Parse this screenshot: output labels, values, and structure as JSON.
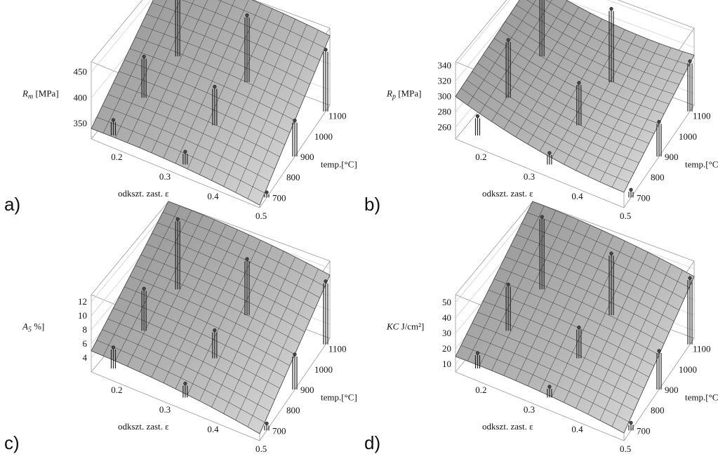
{
  "chart_data": [
    {
      "type": "surface3d",
      "panel": "a)",
      "zlabel_sym": "R",
      "zlabel_sub": "m",
      "zlabel_unit": " [MPa]",
      "xlabel": "odkszt. zast. ε",
      "ylabel": "temp.[°C]",
      "xlim": [
        0.15,
        0.5
      ],
      "ylim": [
        650,
        1150
      ],
      "zlim": [
        320,
        470
      ],
      "xticks": [
        "0.2",
        "0.3",
        "0.4",
        "0.5"
      ],
      "yticks": [
        "700",
        "800",
        "900",
        "1000",
        "1100"
      ],
      "zticks": [
        "350",
        "400",
        "450"
      ],
      "zticks_values": [
        350,
        400,
        450
      ],
      "surface_corners": {
        "x_low_t_low": 340,
        "x_high_t_low": 325,
        "x_low_t_high": 470,
        "x_high_t_high": 455
      },
      "points": [
        {
          "x": 0.18,
          "t": 1120,
          "z": 470
        },
        {
          "x": 0.33,
          "t": 1120,
          "z": 450
        },
        {
          "x": 0.5,
          "t": 1120,
          "z": 440
        },
        {
          "x": 0.18,
          "t": 900,
          "z": 400
        },
        {
          "x": 0.33,
          "t": 900,
          "z": 395
        },
        {
          "x": 0.5,
          "t": 900,
          "z": 390
        },
        {
          "x": 0.18,
          "t": 700,
          "z": 350
        },
        {
          "x": 0.33,
          "t": 700,
          "z": 345
        },
        {
          "x": 0.5,
          "t": 700,
          "z": 330
        }
      ]
    },
    {
      "type": "surface3d",
      "panel": "b)",
      "zlabel_sym": "R",
      "zlabel_sub": "p",
      "zlabel_unit": " [MPa]",
      "xlabel": "odkszt. zast. ε",
      "ylabel": "temp.[°C]",
      "xlim": [
        0.15,
        0.5
      ],
      "ylim": [
        650,
        1150
      ],
      "zlim": [
        245,
        345
      ],
      "xticks": [
        "0.2",
        "0.3",
        "0.4",
        "0.5"
      ],
      "yticks": [
        "700",
        "800",
        "900",
        "1000",
        "1100"
      ],
      "zticks": [
        "260",
        "280",
        "300",
        "320",
        "340"
      ],
      "zticks_values": [
        260,
        280,
        300,
        320,
        340
      ],
      "surface_corners": {
        "x_low_t_low": 300,
        "x_high_t_low": 265,
        "x_low_t_high": 330,
        "x_high_t_high": 310
      },
      "points": [
        {
          "x": 0.18,
          "t": 1120,
          "z": 335
        },
        {
          "x": 0.33,
          "t": 1120,
          "z": 340
        },
        {
          "x": 0.5,
          "t": 1120,
          "z": 310
        },
        {
          "x": 0.18,
          "t": 900,
          "z": 320
        },
        {
          "x": 0.33,
          "t": 900,
          "z": 300
        },
        {
          "x": 0.5,
          "t": 900,
          "z": 290
        },
        {
          "x": 0.18,
          "t": 700,
          "z": 270
        },
        {
          "x": 0.33,
          "t": 700,
          "z": 260
        },
        {
          "x": 0.5,
          "t": 700,
          "z": 255
        }
      ]
    },
    {
      "type": "surface3d",
      "panel": "c)",
      "zlabel_sym": "A",
      "zlabel_sub": "5",
      "zlabel_unit": " %]",
      "xlabel": "odkszt. zast. ε",
      "ylabel": "temp.[°C]",
      "xlim": [
        0.15,
        0.5
      ],
      "ylim": [
        650,
        1150
      ],
      "zlim": [
        2,
        13
      ],
      "xticks": [
        "0.2",
        "0.3",
        "0.4",
        "0.5"
      ],
      "yticks": [
        "700",
        "800",
        "900",
        "1000",
        "1100"
      ],
      "zticks": [
        "4",
        "6",
        "8",
        "10",
        "12"
      ],
      "zticks_values": [
        4,
        6,
        8,
        10,
        12
      ],
      "surface_corners": {
        "x_low_t_low": 5,
        "x_high_t_low": 3,
        "x_low_t_high": 13,
        "x_high_t_high": 11
      },
      "points": [
        {
          "x": 0.18,
          "t": 1120,
          "z": 12
        },
        {
          "x": 0.33,
          "t": 1120,
          "z": 10
        },
        {
          "x": 0.5,
          "t": 1120,
          "z": 11
        },
        {
          "x": 0.18,
          "t": 900,
          "z": 8
        },
        {
          "x": 0.33,
          "t": 900,
          "z": 6
        },
        {
          "x": 0.5,
          "t": 900,
          "z": 7
        },
        {
          "x": 0.18,
          "t": 700,
          "z": 5
        },
        {
          "x": 0.33,
          "t": 700,
          "z": 4
        },
        {
          "x": 0.5,
          "t": 700,
          "z": 3
        }
      ]
    },
    {
      "type": "surface3d",
      "panel": "d)",
      "zlabel_sym": "KC",
      "zlabel_sub": "",
      "zlabel_unit": " J/cm²]",
      "xlabel": "odkszt. zast. ε",
      "ylabel": "temp.[°C]",
      "xlim": [
        0.15,
        0.5
      ],
      "ylim": [
        650,
        1150
      ],
      "zlim": [
        5,
        55
      ],
      "xticks": [
        "0.2",
        "0.3",
        "0.4",
        "0.5"
      ],
      "yticks": [
        "700",
        "800",
        "900",
        "1000",
        "1100"
      ],
      "zticks": [
        "10",
        "20",
        "30",
        "40",
        "50"
      ],
      "zticks_values": [
        10,
        20,
        30,
        40,
        50
      ],
      "surface_corners": {
        "x_low_t_low": 15,
        "x_high_t_low": 10,
        "x_low_t_high": 55,
        "x_high_t_high": 45
      },
      "points": [
        {
          "x": 0.18,
          "t": 1120,
          "z": 52
        },
        {
          "x": 0.33,
          "t": 1120,
          "z": 45
        },
        {
          "x": 0.5,
          "t": 1120,
          "z": 48
        },
        {
          "x": 0.18,
          "t": 900,
          "z": 35
        },
        {
          "x": 0.33,
          "t": 900,
          "z": 25
        },
        {
          "x": 0.5,
          "t": 900,
          "z": 30
        },
        {
          "x": 0.18,
          "t": 700,
          "z": 15
        },
        {
          "x": 0.33,
          "t": 700,
          "z": 12
        },
        {
          "x": 0.5,
          "t": 700,
          "z": 10
        }
      ]
    }
  ]
}
